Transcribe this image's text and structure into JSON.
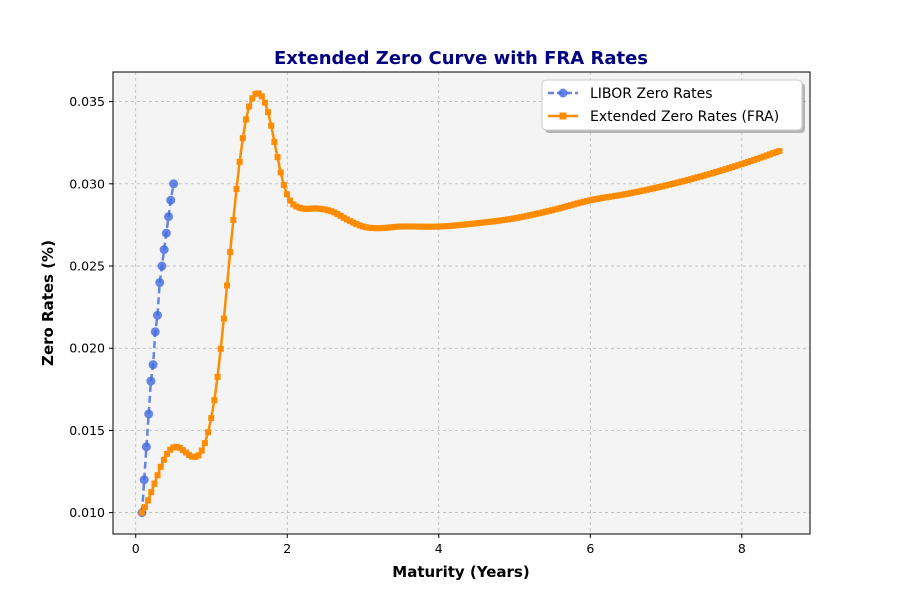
{
  "chart_data": {
    "type": "line",
    "title": "Extended Zero Curve with FRA Rates",
    "xlabel": "Maturity (Years)",
    "ylabel": "Zero Rates (%)",
    "xlim": [
      -0.3,
      8.9
    ],
    "ylim": [
      0.0087,
      0.0368
    ],
    "xticks": [
      0,
      2,
      4,
      6,
      8
    ],
    "xtick_labels": [
      "0",
      "2",
      "4",
      "6",
      "8"
    ],
    "yticks": [
      0.01,
      0.015,
      0.02,
      0.025,
      0.03,
      0.035
    ],
    "ytick_labels": [
      "0.010",
      "0.015",
      "0.020",
      "0.025",
      "0.030",
      "0.035"
    ],
    "grid": true,
    "legend_position": "top-right",
    "series": [
      {
        "name": "LIBOR Zero Rates",
        "color": "#4169e1",
        "line_style": "dashed",
        "marker": "circle",
        "x": [
          0.083,
          0.125,
          0.167,
          0.208,
          0.25,
          0.292,
          0.333,
          0.375,
          0.417,
          0.458,
          0.5
        ],
        "y_values": [
          0.01,
          0.012,
          0.014,
          0.016,
          0.018,
          0.019,
          0.021,
          0.022,
          0.024,
          0.025,
          0.026,
          0.027,
          0.028,
          0.029,
          0.03
        ],
        "x_full": [
          0.083,
          0.112,
          0.141,
          0.171,
          0.2,
          0.229,
          0.258,
          0.287,
          0.317,
          0.346,
          0.375,
          0.404,
          0.433,
          0.462,
          0.5
        ]
      },
      {
        "name": "Extended Zero Rates (FRA)",
        "color": "#ff8c00",
        "line_style": "solid",
        "marker": "square",
        "anchors": [
          [
            0.08,
            0.01
          ],
          [
            0.15,
            0.0106
          ],
          [
            0.25,
            0.0118
          ],
          [
            0.35,
            0.013
          ],
          [
            0.45,
            0.0138
          ],
          [
            0.55,
            0.014
          ],
          [
            0.65,
            0.0137
          ],
          [
            0.75,
            0.0134
          ],
          [
            0.85,
            0.0136
          ],
          [
            0.95,
            0.0148
          ],
          [
            1.05,
            0.0172
          ],
          [
            1.15,
            0.0212
          ],
          [
            1.25,
            0.026
          ],
          [
            1.35,
            0.0305
          ],
          [
            1.45,
            0.0338
          ],
          [
            1.55,
            0.0353
          ],
          [
            1.65,
            0.0354
          ],
          [
            1.75,
            0.0343
          ],
          [
            1.85,
            0.0321
          ],
          [
            1.95,
            0.03
          ],
          [
            2.05,
            0.0289
          ],
          [
            2.2,
            0.0285
          ],
          [
            2.4,
            0.0285
          ],
          [
            2.6,
            0.0283
          ],
          [
            2.8,
            0.0278
          ],
          [
            3.0,
            0.0274
          ],
          [
            3.2,
            0.0273
          ],
          [
            3.5,
            0.0274
          ],
          [
            4.0,
            0.0274
          ],
          [
            4.5,
            0.0276
          ],
          [
            5.0,
            0.0279
          ],
          [
            5.5,
            0.0284
          ],
          [
            6.0,
            0.029
          ],
          [
            6.5,
            0.0294
          ],
          [
            7.0,
            0.0299
          ],
          [
            7.5,
            0.0305
          ],
          [
            8.0,
            0.0312
          ],
          [
            8.5,
            0.032
          ]
        ]
      }
    ]
  },
  "legend": {
    "items": [
      "LIBOR Zero Rates",
      "Extended Zero Rates (FRA)"
    ]
  }
}
